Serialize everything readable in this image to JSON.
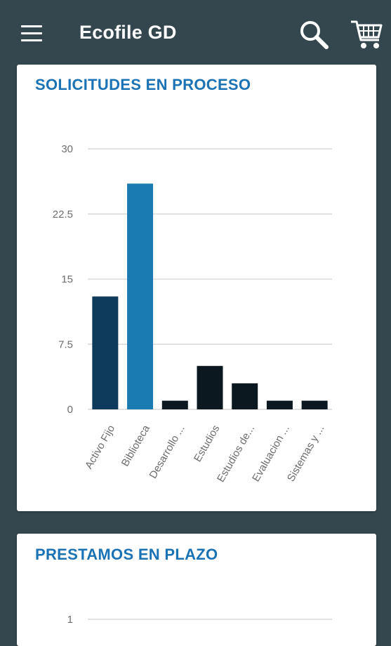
{
  "app": {
    "title": "Ecofile GD"
  },
  "icons": {
    "menu": "hamburger-menu-icon",
    "search": "magnifier-icon",
    "cart": "shopping-cart-icon"
  },
  "colors": {
    "appbar": "#34474f",
    "card_title": "#1a73b5",
    "bar_dark_blue": "#0e3a5b",
    "bar_highlight": "#1a7ab2",
    "bar_black": "#0b1820",
    "gridline": "#d9d9d9",
    "axis_text": "#6d6d6d"
  },
  "cards": [
    {
      "title": "SOLICITUDES EN PROCESO"
    },
    {
      "title": "PRESTAMOS EN PLAZO"
    }
  ],
  "chart_data": [
    {
      "type": "bar",
      "title": "SOLICITUDES EN PROCESO",
      "categories": [
        "Activo Fijo",
        "Biblioteca",
        "Desarrollo ...",
        "Estudios",
        "Estudios de...",
        "Evaluacion ...",
        "Sistemas y ..."
      ],
      "values": [
        13,
        26,
        1,
        5,
        3,
        1,
        1
      ],
      "bar_colors": [
        "#0e3a5b",
        "#1a7ab2",
        "#0b1820",
        "#0b1820",
        "#0b1820",
        "#0b1820",
        "#0b1820"
      ],
      "ylim": [
        0,
        30
      ],
      "yticks": [
        "30",
        "22.5",
        "15",
        "7.5",
        "0"
      ],
      "ytick_values": [
        30,
        22.5,
        15,
        7.5,
        0
      ],
      "grid": true,
      "legend": "none"
    },
    {
      "type": "bar",
      "title": "PRESTAMOS EN PLAZO",
      "yticks": [
        "1"
      ],
      "ytick_values": [
        1
      ],
      "grid": true
    }
  ]
}
